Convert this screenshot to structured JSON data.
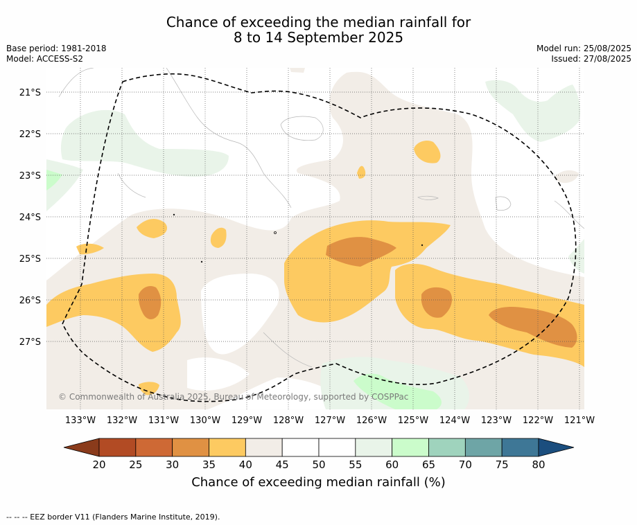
{
  "title_line1": "Chance of exceeding the median rainfall for",
  "title_line2": "8 to 14 September 2025",
  "meta_left": {
    "base_period": "Base period: 1981-2018",
    "model": "Model: ACCESS-S2"
  },
  "meta_right": {
    "model_run": "Model run: 25/08/2025",
    "issued": "Issued: 27/08/2025"
  },
  "copyright": "© Commonwealth of Australia 2025, Bureau of Meteorology, supported by COSPPac",
  "colorbar": {
    "title": "Chance of exceeding median rainfall (%)",
    "ticks": [
      "20",
      "25",
      "30",
      "35",
      "40",
      "45",
      "50",
      "55",
      "60",
      "65",
      "70",
      "75",
      "80"
    ],
    "colors": [
      "#b24b24",
      "#ce6935",
      "#e09143",
      "#fdca61",
      "#f2ede7",
      "#ffffff",
      "#ffffff",
      "#e9f4e9",
      "#cbfccb",
      "#9fd3bd",
      "#6ea5a6",
      "#3e7796"
    ],
    "low_color": "#8a3b1b",
    "high_color": "#1b4e7e"
  },
  "map": {
    "lat_labels": [
      "21°S",
      "22°S",
      "23°S",
      "24°S",
      "25°S",
      "26°S",
      "27°S"
    ],
    "lon_labels": [
      "133°W",
      "132°W",
      "131°W",
      "130°W",
      "129°W",
      "128°W",
      "127°W",
      "126°W",
      "125°W",
      "124°W",
      "123°W",
      "122°W",
      "121°W"
    ],
    "lat_range": [
      -28.6,
      -20.4
    ],
    "lon_range": [
      -133.8,
      -120.9
    ],
    "eez_border": "dashed black closed curve",
    "gridlines": "dotted"
  },
  "footnote": "--  --  -- EEZ border V11 (Flanders Marine Institute, 2019)."
}
